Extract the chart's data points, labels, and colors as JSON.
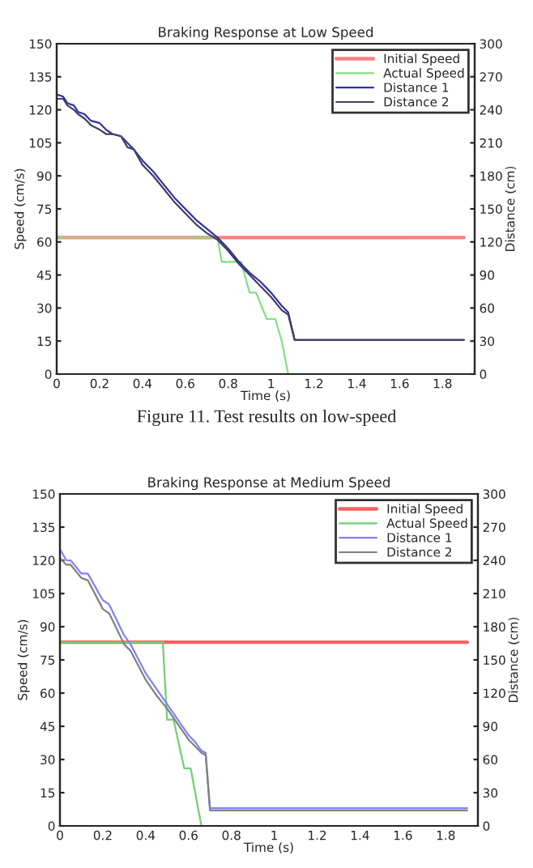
{
  "chart_data": [
    {
      "type": "line",
      "title": "Braking Response at Low Speed",
      "xlabel": "Time (s)",
      "ylabel": "Speed (cm/s)",
      "y2label": "Distance (cm)",
      "annotations": [
        "Figure 11. Test results on low-speed"
      ],
      "xlim": [
        0,
        1.95
      ],
      "xticks": [
        0,
        0.2,
        0.4,
        0.6,
        0.8,
        1,
        1.2,
        1.4,
        1.6,
        1.8
      ],
      "ylim": [
        0,
        150
      ],
      "yticks": [
        0,
        15,
        30,
        45,
        60,
        75,
        90,
        105,
        120,
        135,
        150
      ],
      "y2lim": [
        0,
        300
      ],
      "y2ticks": [
        0,
        30,
        60,
        90,
        120,
        150,
        180,
        210,
        240,
        270,
        300
      ],
      "legend": "top right",
      "grid": false,
      "series": [
        {
          "name": "Initial Speed",
          "color": "#ff8080",
          "x": [
            0,
            1.9
          ],
          "values": [
            62,
            62
          ]
        },
        {
          "name": "Actual Speed",
          "color": "#80e080",
          "x": [
            0,
            0.75,
            0.77,
            0.86,
            0.9,
            0.93,
            0.98,
            1.02,
            1.05,
            1.08
          ],
          "values": [
            62,
            62,
            51,
            51,
            37,
            37,
            25,
            25,
            15,
            0
          ]
        },
        {
          "name": "Distance 1",
          "color": "#3030b0",
          "axis": "y2",
          "x": [
            0,
            0.03,
            0.05,
            0.08,
            0.1,
            0.13,
            0.16,
            0.2,
            0.23,
            0.26,
            0.3,
            0.33,
            0.36,
            0.4,
            0.45,
            0.5,
            0.55,
            0.6,
            0.65,
            0.7,
            0.75,
            0.8,
            0.85,
            0.9,
            0.95,
            1.0,
            1.05,
            1.08,
            1.11,
            1.9
          ],
          "values": [
            254,
            252,
            246,
            244,
            238,
            236,
            230,
            228,
            222,
            218,
            216,
            210,
            204,
            194,
            184,
            172,
            160,
            150,
            140,
            132,
            124,
            114,
            102,
            92,
            84,
            74,
            62,
            56,
            31,
            31
          ]
        },
        {
          "name": "Distance 2",
          "color": "#404060",
          "axis": "y2",
          "x": [
            0,
            0.03,
            0.05,
            0.08,
            0.1,
            0.13,
            0.16,
            0.2,
            0.23,
            0.26,
            0.3,
            0.33,
            0.36,
            0.4,
            0.45,
            0.5,
            0.55,
            0.6,
            0.65,
            0.7,
            0.75,
            0.8,
            0.85,
            0.9,
            0.95,
            1.0,
            1.05,
            1.08,
            1.11,
            1.9
          ],
          "values": [
            250,
            250,
            244,
            240,
            236,
            232,
            226,
            222,
            218,
            218,
            216,
            206,
            204,
            190,
            180,
            168,
            156,
            146,
            136,
            128,
            122,
            112,
            100,
            90,
            80,
            70,
            58,
            54,
            31,
            31
          ]
        }
      ]
    },
    {
      "type": "line",
      "title": "Braking Response at Medium Speed",
      "xlabel": "Time (s)",
      "ylabel": "Speed (cm/s)",
      "y2label": "Distance (cm)",
      "xlim": [
        0,
        1.95
      ],
      "xticks": [
        0,
        0.2,
        0.4,
        0.6,
        0.8,
        1,
        1.2,
        1.4,
        1.6,
        1.8
      ],
      "ylim": [
        0,
        150
      ],
      "yticks": [
        0,
        15,
        30,
        45,
        60,
        75,
        90,
        105,
        120,
        135,
        150
      ],
      "y2lim": [
        0,
        300
      ],
      "y2ticks": [
        0,
        30,
        60,
        90,
        120,
        150,
        180,
        210,
        240,
        270,
        300
      ],
      "legend": "top right",
      "grid": false,
      "series": [
        {
          "name": "Initial Speed",
          "color": "#ff6060",
          "x": [
            0,
            1.9
          ],
          "values": [
            83,
            83
          ]
        },
        {
          "name": "Actual Speed",
          "color": "#70d070",
          "x": [
            0,
            0.48,
            0.5,
            0.53,
            0.58,
            0.61,
            0.66
          ],
          "values": [
            83,
            83,
            48,
            48,
            26,
            26,
            0
          ]
        },
        {
          "name": "Distance 1",
          "color": "#8080ff",
          "axis": "y2",
          "x": [
            0,
            0.03,
            0.05,
            0.1,
            0.13,
            0.2,
            0.23,
            0.3,
            0.33,
            0.4,
            0.45,
            0.5,
            0.55,
            0.6,
            0.63,
            0.66,
            0.68,
            0.7,
            1.9
          ],
          "values": [
            250,
            240,
            240,
            228,
            228,
            204,
            200,
            172,
            164,
            138,
            124,
            110,
            96,
            82,
            76,
            68,
            66,
            16,
            16
          ]
        },
        {
          "name": "Distance 2",
          "color": "#808080",
          "axis": "y2",
          "x": [
            0,
            0.03,
            0.05,
            0.1,
            0.13,
            0.2,
            0.23,
            0.3,
            0.33,
            0.4,
            0.45,
            0.5,
            0.55,
            0.6,
            0.63,
            0.66,
            0.68,
            0.7,
            1.9
          ],
          "values": [
            242,
            236,
            236,
            224,
            222,
            196,
            192,
            164,
            158,
            132,
            118,
            106,
            92,
            78,
            72,
            66,
            64,
            14,
            14
          ]
        }
      ]
    }
  ]
}
